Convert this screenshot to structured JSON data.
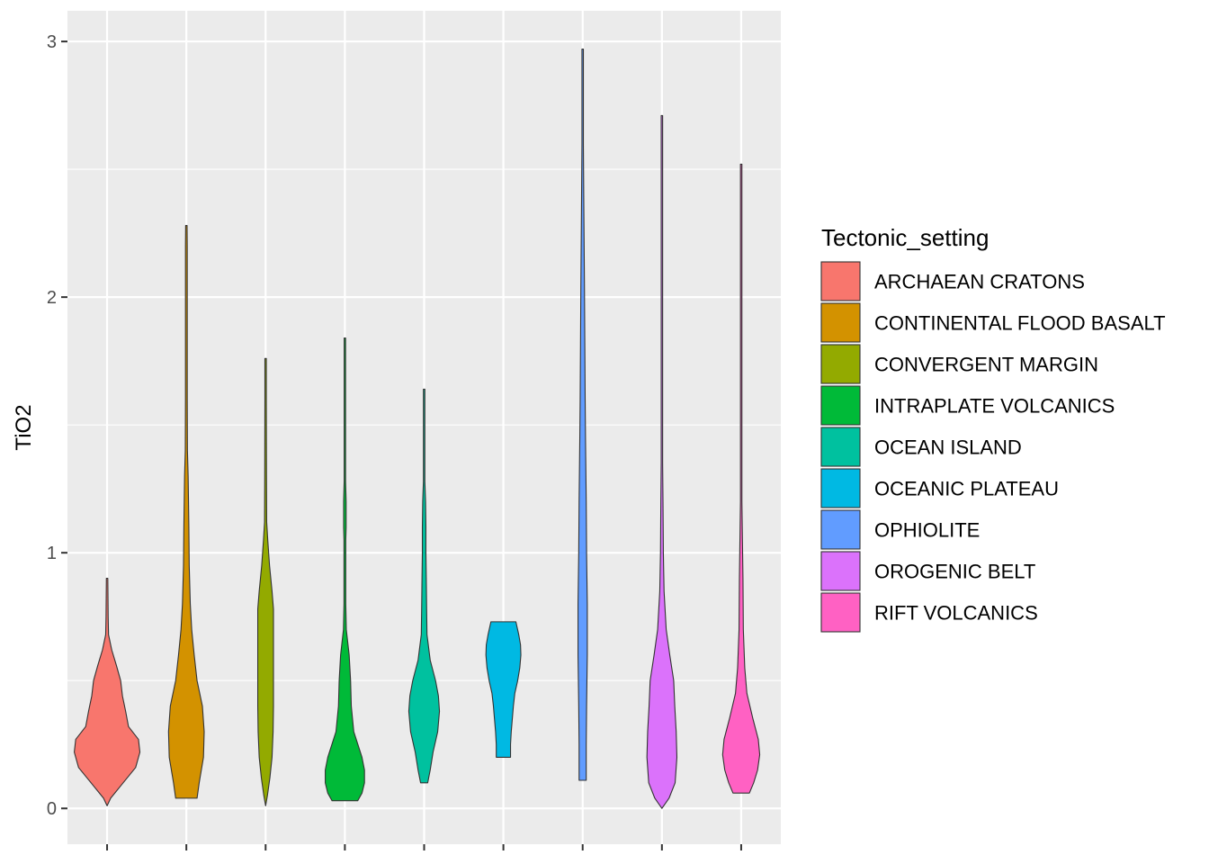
{
  "chart_data": {
    "type": "violin",
    "title": "",
    "xlabel": "",
    "ylabel": "TiO2",
    "ylim": [
      -0.14,
      3.12
    ],
    "y_ticks": [
      0,
      1,
      2,
      3
    ],
    "grid": true,
    "legend": {
      "title": "Tectonic_setting",
      "position": "right"
    },
    "categories": [
      "ARCHAEAN CRATONS",
      "CONTINENTAL FLOOD BASALT",
      "CONVERGENT MARGIN",
      "INTRAPLATE VOLCANICS",
      "OCEAN ISLAND",
      "OCEANIC PLATEAU",
      "OPHIOLITE",
      "OROGENIC BELT",
      "RIFT VOLCANICS"
    ],
    "colors": [
      "#F8766D",
      "#D39200",
      "#93AA00",
      "#00BA38",
      "#00C19F",
      "#00B9E3",
      "#619CFF",
      "#DB72FB",
      "#FF61C3"
    ],
    "series": [
      {
        "name": "ARCHAEAN CRATONS",
        "min": 0.01,
        "max": 0.9,
        "profile": [
          [
            0.01,
            0.0
          ],
          [
            0.04,
            0.1
          ],
          [
            0.1,
            0.45
          ],
          [
            0.16,
            0.8
          ],
          [
            0.22,
            0.92
          ],
          [
            0.27,
            0.88
          ],
          [
            0.32,
            0.6
          ],
          [
            0.38,
            0.52
          ],
          [
            0.44,
            0.43
          ],
          [
            0.5,
            0.38
          ],
          [
            0.56,
            0.26
          ],
          [
            0.62,
            0.13
          ],
          [
            0.68,
            0.04
          ],
          [
            0.75,
            0.03
          ],
          [
            0.9,
            0.02
          ]
        ]
      },
      {
        "name": "CONTINENTAL FLOOD BASALT",
        "min": 0.04,
        "max": 2.28,
        "profile": [
          [
            0.04,
            0.3
          ],
          [
            0.1,
            0.36
          ],
          [
            0.2,
            0.48
          ],
          [
            0.3,
            0.5
          ],
          [
            0.4,
            0.45
          ],
          [
            0.5,
            0.3
          ],
          [
            0.6,
            0.22
          ],
          [
            0.7,
            0.15
          ],
          [
            0.8,
            0.11
          ],
          [
            0.95,
            0.08
          ],
          [
            1.1,
            0.07
          ],
          [
            1.3,
            0.05
          ],
          [
            1.4,
            0.03
          ],
          [
            1.6,
            0.025
          ],
          [
            2.2,
            0.025
          ],
          [
            2.28,
            0.02
          ]
        ]
      },
      {
        "name": "CONVERGENT MARGIN",
        "min": 0.01,
        "max": 1.76,
        "profile": [
          [
            0.01,
            0.0
          ],
          [
            0.05,
            0.05
          ],
          [
            0.12,
            0.12
          ],
          [
            0.2,
            0.18
          ],
          [
            0.3,
            0.21
          ],
          [
            0.4,
            0.22
          ],
          [
            0.6,
            0.22
          ],
          [
            0.78,
            0.22
          ],
          [
            0.85,
            0.18
          ],
          [
            0.95,
            0.11
          ],
          [
            1.05,
            0.06
          ],
          [
            1.12,
            0.03
          ],
          [
            1.3,
            0.025
          ],
          [
            1.6,
            0.02
          ],
          [
            1.76,
            0.02
          ]
        ]
      },
      {
        "name": "INTRAPLATE VOLCANICS",
        "min": 0.03,
        "max": 1.84,
        "profile": [
          [
            0.03,
            0.36
          ],
          [
            0.06,
            0.48
          ],
          [
            0.1,
            0.55
          ],
          [
            0.15,
            0.55
          ],
          [
            0.2,
            0.48
          ],
          [
            0.3,
            0.25
          ],
          [
            0.4,
            0.18
          ],
          [
            0.5,
            0.16
          ],
          [
            0.6,
            0.12
          ],
          [
            0.7,
            0.04
          ],
          [
            0.8,
            0.025
          ],
          [
            1.05,
            0.025
          ],
          [
            1.1,
            0.035
          ],
          [
            1.2,
            0.035
          ],
          [
            1.28,
            0.02
          ],
          [
            1.84,
            0.02
          ]
        ]
      },
      {
        "name": "OCEAN ISLAND",
        "min": 0.1,
        "max": 1.64,
        "profile": [
          [
            0.1,
            0.1
          ],
          [
            0.15,
            0.17
          ],
          [
            0.22,
            0.25
          ],
          [
            0.3,
            0.38
          ],
          [
            0.38,
            0.43
          ],
          [
            0.44,
            0.4
          ],
          [
            0.5,
            0.32
          ],
          [
            0.58,
            0.17
          ],
          [
            0.68,
            0.08
          ],
          [
            0.78,
            0.07
          ],
          [
            0.9,
            0.06
          ],
          [
            1.0,
            0.05
          ],
          [
            1.1,
            0.05
          ],
          [
            1.2,
            0.04
          ],
          [
            1.28,
            0.02
          ],
          [
            1.64,
            0.02
          ]
        ]
      },
      {
        "name": "OCEANIC PLATEAU",
        "min": 0.2,
        "max": 0.73,
        "profile": [
          [
            0.2,
            0.2
          ],
          [
            0.25,
            0.2
          ],
          [
            0.3,
            0.22
          ],
          [
            0.35,
            0.25
          ],
          [
            0.4,
            0.28
          ],
          [
            0.45,
            0.32
          ],
          [
            0.5,
            0.4
          ],
          [
            0.55,
            0.46
          ],
          [
            0.6,
            0.49
          ],
          [
            0.64,
            0.48
          ],
          [
            0.68,
            0.43
          ],
          [
            0.73,
            0.35
          ]
        ]
      },
      {
        "name": "OPHIOLITE",
        "min": 0.11,
        "max": 2.97,
        "profile": [
          [
            0.11,
            0.1
          ],
          [
            0.25,
            0.1
          ],
          [
            0.4,
            0.11
          ],
          [
            0.6,
            0.13
          ],
          [
            0.8,
            0.13
          ],
          [
            1.0,
            0.11
          ],
          [
            1.2,
            0.1
          ],
          [
            1.45,
            0.08
          ],
          [
            1.6,
            0.07
          ],
          [
            2.05,
            0.05
          ],
          [
            2.4,
            0.03
          ],
          [
            2.6,
            0.02
          ],
          [
            2.97,
            0.02
          ]
        ]
      },
      {
        "name": "OROGENIC BELT",
        "min": 0.0,
        "max": 2.71,
        "profile": [
          [
            0.0,
            0.0
          ],
          [
            0.04,
            0.2
          ],
          [
            0.1,
            0.37
          ],
          [
            0.2,
            0.42
          ],
          [
            0.3,
            0.4
          ],
          [
            0.4,
            0.36
          ],
          [
            0.5,
            0.33
          ],
          [
            0.6,
            0.22
          ],
          [
            0.7,
            0.12
          ],
          [
            0.85,
            0.06
          ],
          [
            1.0,
            0.04
          ],
          [
            1.2,
            0.03
          ],
          [
            1.35,
            0.02
          ],
          [
            2.71,
            0.02
          ]
        ]
      },
      {
        "name": "RIFT VOLCANICS",
        "min": 0.06,
        "max": 2.52,
        "profile": [
          [
            0.06,
            0.23
          ],
          [
            0.1,
            0.35
          ],
          [
            0.15,
            0.46
          ],
          [
            0.21,
            0.52
          ],
          [
            0.27,
            0.48
          ],
          [
            0.35,
            0.33
          ],
          [
            0.45,
            0.16
          ],
          [
            0.55,
            0.1
          ],
          [
            0.7,
            0.06
          ],
          [
            0.9,
            0.05
          ],
          [
            1.1,
            0.03
          ],
          [
            1.2,
            0.02
          ],
          [
            2.3,
            0.02
          ],
          [
            2.52,
            0.02
          ]
        ]
      }
    ]
  }
}
